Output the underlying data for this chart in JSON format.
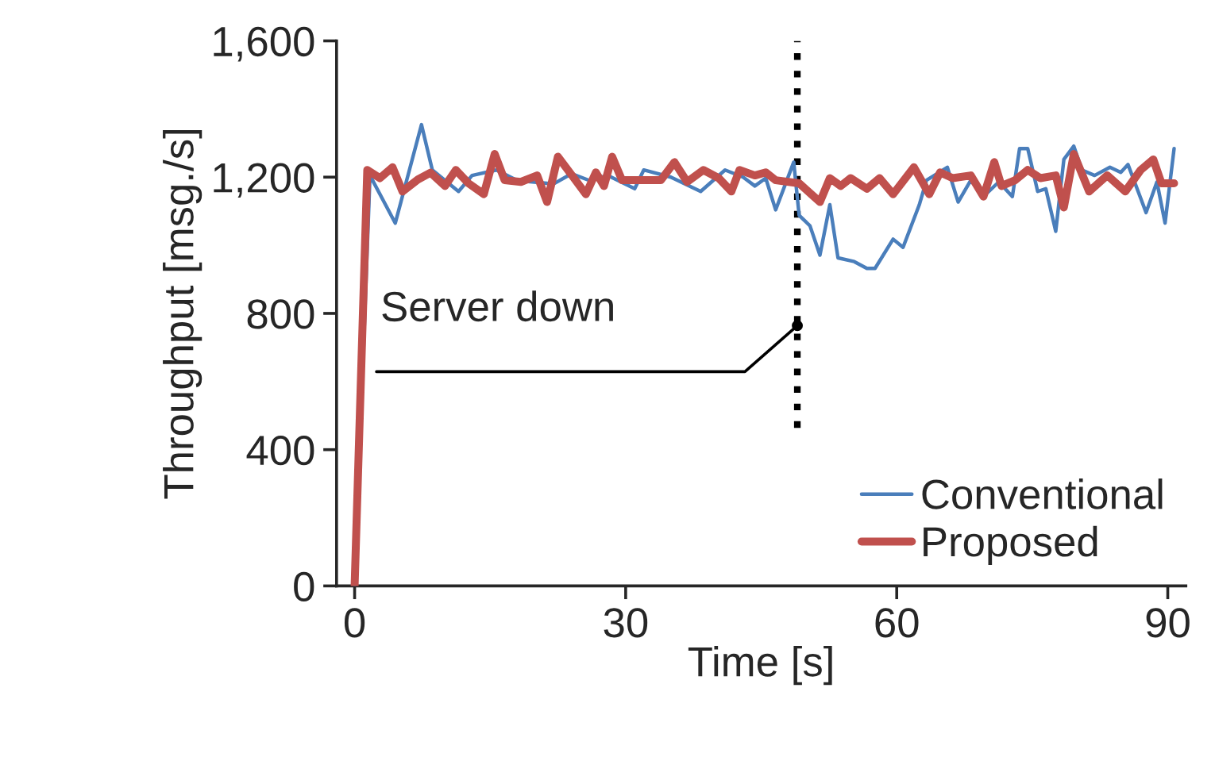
{
  "chart_data": {
    "type": "line",
    "xlabel": "Time [s]",
    "ylabel": "Throughput [msg./s]",
    "xlim": [
      -2,
      92
    ],
    "xticks": [
      0,
      30,
      60,
      90
    ],
    "ylim": [
      0,
      1600
    ],
    "yticks": [
      0,
      400,
      800,
      {
        "value": 1200,
        "label": "1,200"
      },
      {
        "value": 1600,
        "label": "1,600"
      }
    ],
    "grid": false,
    "legend": "bottom right",
    "marker": "none",
    "ref_lines": [
      {
        "axis": "x",
        "value": 49,
        "color": "#000000",
        "line_style": "dotted"
      }
    ],
    "annotations": [
      {
        "text": "Server down",
        "x": 49,
        "y": 764
      }
    ],
    "series": [
      {
        "name": "Conventional",
        "color": "#4a7ebb",
        "x": [
          0,
          1.7,
          4.5,
          7.4,
          8.6,
          11.5,
          13,
          15.7,
          18,
          20,
          22,
          24,
          26,
          28,
          31,
          32,
          35,
          38.3,
          41,
          43,
          44.3,
          45.5,
          46.6,
          48.6,
          49.2,
          50.4,
          51.5,
          52.6,
          53.5,
          55.3,
          56.7,
          57.6,
          59.6,
          60.7,
          62.5,
          63.3,
          65.6,
          66.8,
          68.2,
          69.6,
          71.3,
          72.8,
          73.6,
          74.5,
          75.6,
          76.5,
          77.6,
          78.5,
          79.6,
          80.5,
          81.9,
          83.6,
          84.8,
          85.6,
          87.6,
          88.8,
          89.7,
          90.7
        ],
        "values": [
          0,
          1205,
          1065,
          1354,
          1221,
          1158,
          1205,
          1221,
          1190,
          null,
          1180,
          1210,
          1190,
          1205,
          1166,
          1221,
          1200,
          1158,
          1221,
          1200,
          1174,
          1197,
          1104,
          1244,
          1088,
          1057,
          971,
          1119,
          963,
          952,
          932,
          932,
          1018,
          994,
          1119,
          1191,
          1229,
          1127,
          1191,
          1143,
          1186,
          1143,
          1284,
          1284,
          1158,
          1166,
          1041,
          1252,
          1291,
          1221,
          1205,
          1229,
          1214,
          1237,
          1096,
          1186,
          1065,
          1284
        ]
      },
      {
        "name": "Proposed",
        "color": "#c0504d",
        "x": [
          0,
          1.4,
          2.8,
          4.2,
          5.3,
          7,
          8.4,
          10,
          11.2,
          12.6,
          14.3,
          15.5,
          16.6,
          18.4,
          20.2,
          21.3,
          22.5,
          24.2,
          25.6,
          26.7,
          27.6,
          28.5,
          29.6,
          32.2,
          33.9,
          35.4,
          36.8,
          38.6,
          40.3,
          41.7,
          42.6,
          44.3,
          45.5,
          46.6,
          49.2,
          51.5,
          52.6,
          53.8,
          54.9,
          56.7,
          58.1,
          59.6,
          61.9,
          63.6,
          64.8,
          66.2,
          68.2,
          69.6,
          70.8,
          71.6,
          73.1,
          74.5,
          75.9,
          77.6,
          78.5,
          79.6,
          81.3,
          83.3,
          85.3,
          87,
          88.4,
          89.3,
          90.7
        ],
        "values": [
          0,
          1221,
          1197,
          1229,
          1158,
          1193,
          1213,
          1174,
          1221,
          1182,
          1150,
          1268,
          1191,
          1186,
          1205,
          1127,
          1260,
          1200,
          1150,
          1214,
          1174,
          1260,
          1191,
          1191,
          1191,
          1244,
          1186,
          1221,
          1197,
          1158,
          1221,
          1205,
          1214,
          1191,
          1182,
          1127,
          1197,
          1174,
          1197,
          1166,
          1197,
          1150,
          1229,
          1150,
          1214,
          1197,
          1205,
          1143,
          1244,
          1174,
          1191,
          1221,
          1197,
          1205,
          1111,
          1268,
          1158,
          1205,
          1158,
          1221,
          1252,
          1182,
          1182
        ]
      }
    ]
  }
}
